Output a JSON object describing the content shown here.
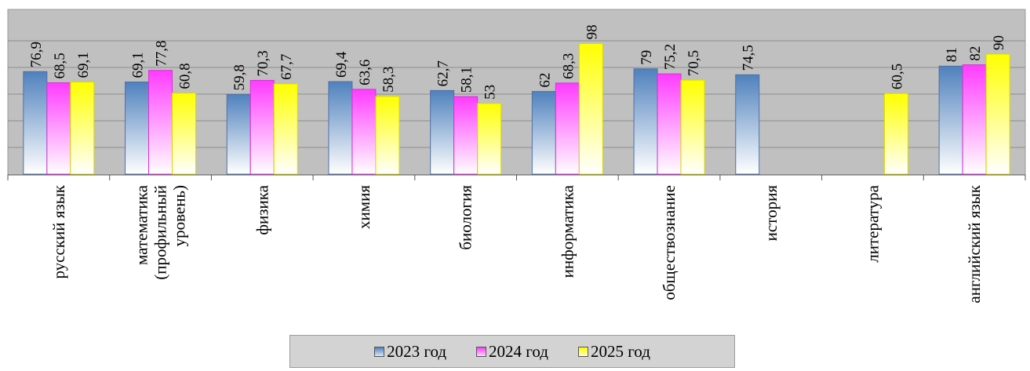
{
  "chart_data": {
    "type": "bar",
    "categories": [
      "русский язык",
      "математика (профильный уровень)",
      "физика",
      "химия",
      "биология",
      "информатика",
      "обществознание",
      "история",
      "литература",
      "английский язык"
    ],
    "category_lines": [
      [
        "русский язык"
      ],
      [
        "математика",
        "(профильный",
        "уровень)"
      ],
      [
        "физика"
      ],
      [
        "химия"
      ],
      [
        "биология"
      ],
      [
        "информатика"
      ],
      [
        "обществознание"
      ],
      [
        "история"
      ],
      [
        "литература"
      ],
      [
        "английский язык"
      ]
    ],
    "series": [
      {
        "name": "2023 год",
        "color": "#4f81bd",
        "values": [
          76.9,
          69.1,
          59.8,
          69.4,
          62.7,
          62,
          79,
          74.5,
          null,
          81
        ],
        "labels": [
          "76,9",
          "69,1",
          "59,8",
          "69,4",
          "62,7",
          "62",
          "79",
          "74,5",
          null,
          "81"
        ]
      },
      {
        "name": "2024 год",
        "color": "#ff3cff",
        "values": [
          68.5,
          77.8,
          70.3,
          63.6,
          58.1,
          68.3,
          75.2,
          null,
          null,
          82
        ],
        "labels": [
          "68,5",
          "77,8",
          "70,3",
          "63,6",
          "58,1",
          "68,3",
          "75,2",
          null,
          null,
          "82"
        ]
      },
      {
        "name": "2025 год",
        "color": "#ffff00",
        "values": [
          69.1,
          60.8,
          67.7,
          58.3,
          53,
          98,
          70.5,
          null,
          60.5,
          90
        ],
        "labels": [
          "69,1",
          "60,8",
          "67,7",
          "58,3",
          "53",
          "98",
          "70,5",
          null,
          "60,5",
          "90"
        ]
      }
    ],
    "ylim": [
      0,
      100
    ],
    "grid": true,
    "legend_position": "bottom"
  }
}
